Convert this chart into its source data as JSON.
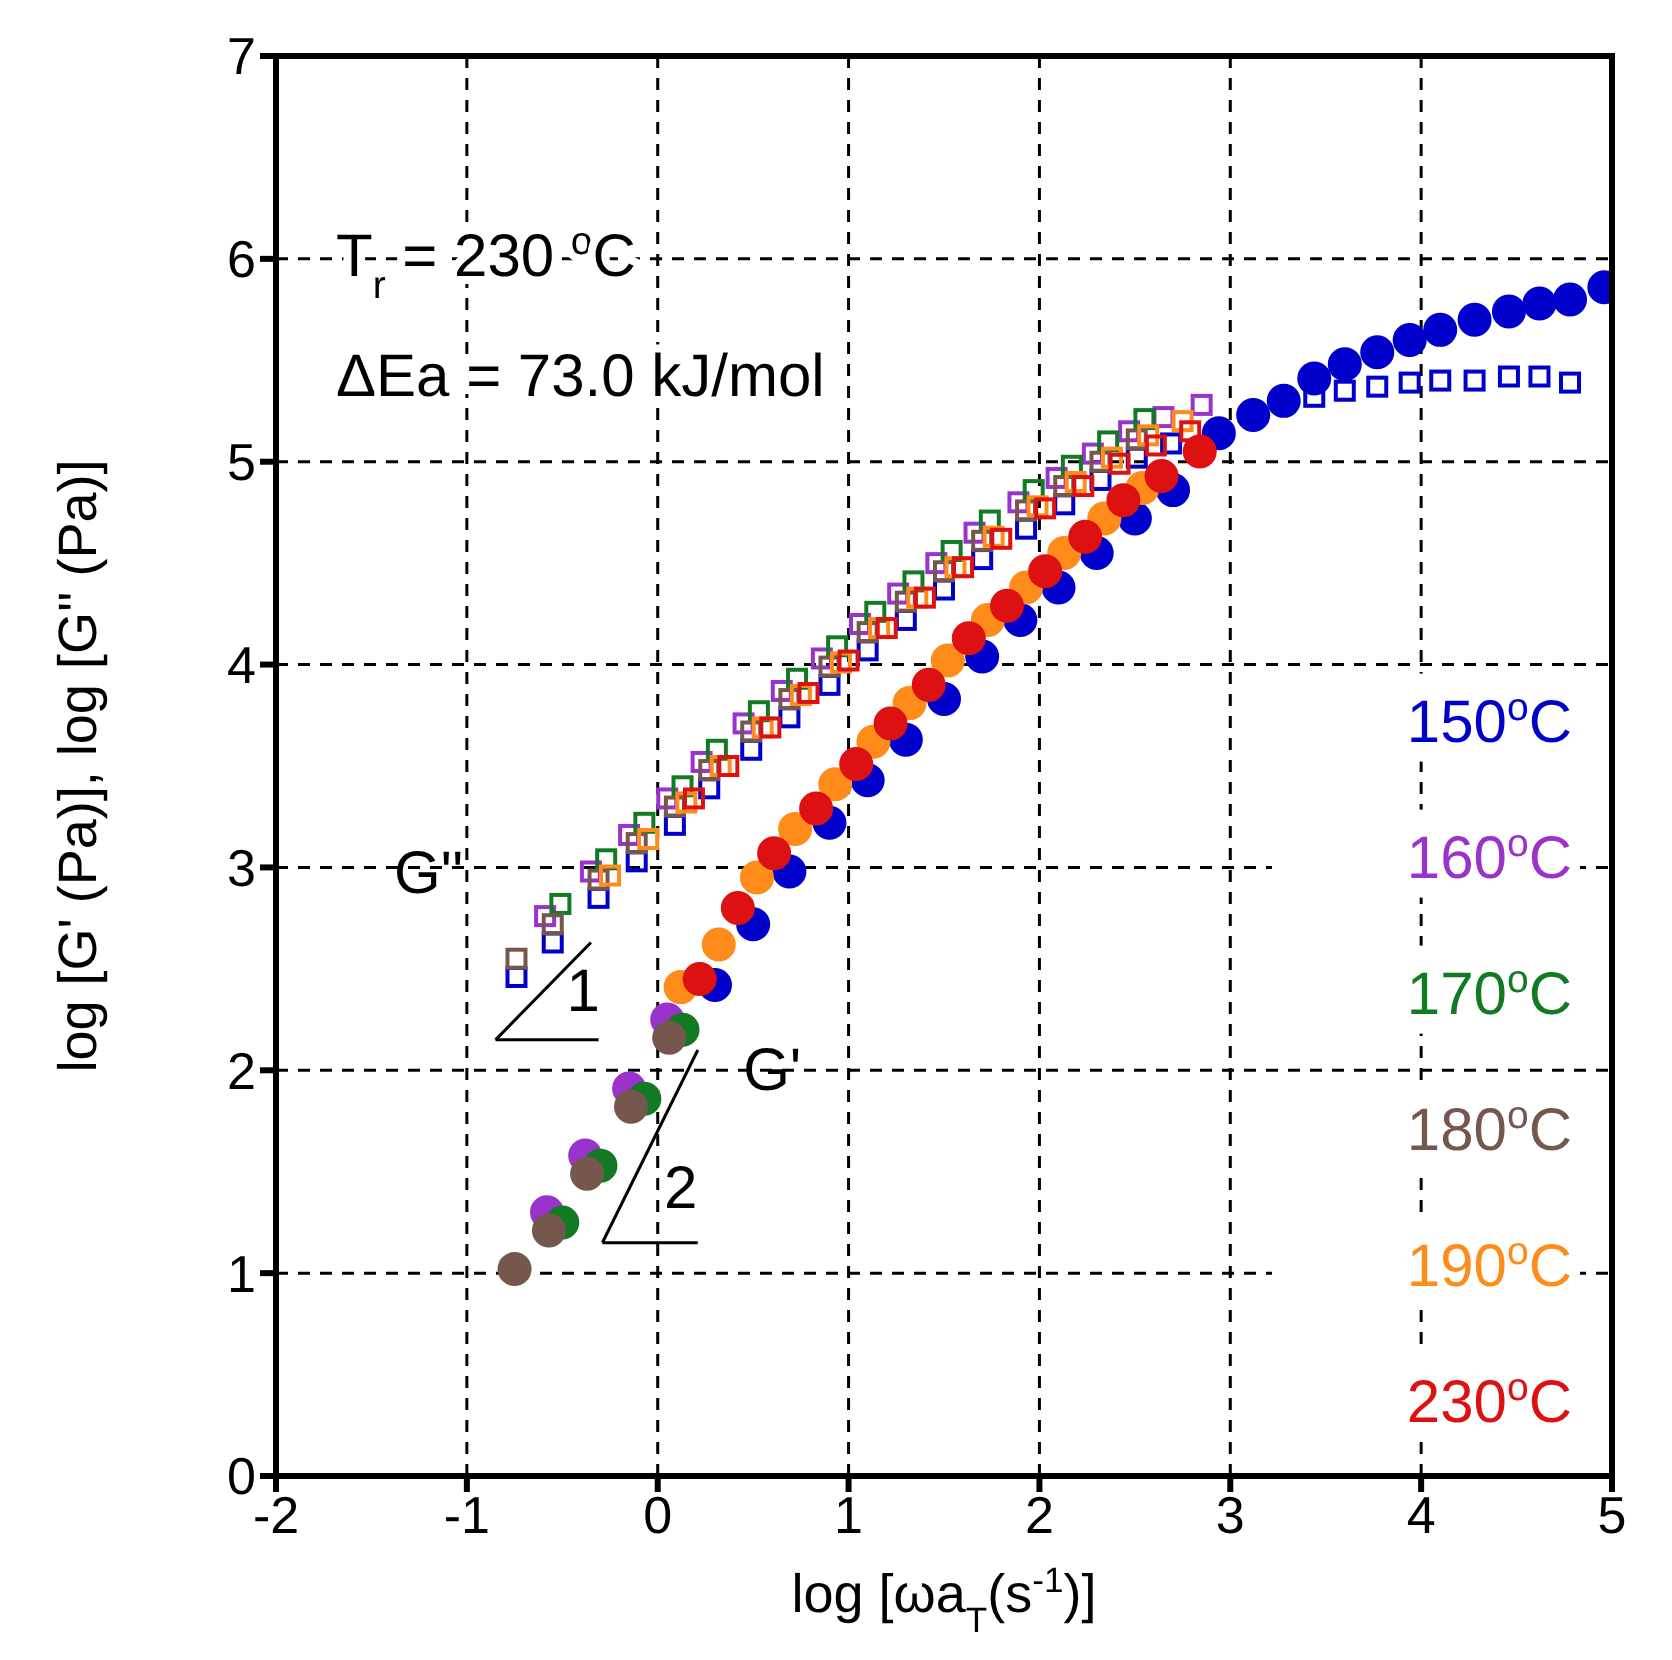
{
  "chart_data": {
    "type": "scatter",
    "xlabel": "log [ωa$_{T}$(s$^{-1}$)]",
    "ylabel": "log [G' (Pa)], log [G'' (Pa)]",
    "xlim": [
      -2,
      5
    ],
    "xticks": [
      -2,
      -1,
      0,
      1,
      2,
      3,
      4,
      5
    ],
    "ylim": [
      0,
      7
    ],
    "yticks": [
      0,
      1,
      2,
      3,
      4,
      5,
      6,
      7
    ],
    "grid": true,
    "legend": "right",
    "annotations": [
      "T$_{r}$ = 230 $^{o}$C",
      "ΔEa = 73.0 kJ/mol",
      "G''",
      "G'",
      "1",
      {
        "text": "2",
        "x": 0.06,
        "y": 2.16
      }
    ],
    "series": [
      {
        "color": "#0000cc",
        "marker": "square",
        "x": [
          -0.74,
          -0.55,
          -0.31,
          -0.11,
          0.09,
          0.27,
          0.49,
          0.69,
          0.9,
          1.1,
          1.3,
          1.5,
          1.7,
          1.93,
          2.13,
          2.32,
          2.51,
          2.69,
          3.44,
          3.6,
          3.77,
          3.94,
          4.1,
          4.28,
          4.46,
          4.62,
          4.78
        ],
        "values": [
          2.46,
          2.63,
          2.85,
          3.03,
          3.21,
          3.39,
          3.58,
          3.74,
          3.9,
          4.07,
          4.22,
          4.37,
          4.52,
          4.67,
          4.79,
          4.91,
          5.02,
          5.09,
          5.32,
          5.35,
          5.37,
          5.39,
          5.4,
          5.4,
          5.42,
          5.42,
          5.39
        ]
      },
      {
        "color": "#9933cc",
        "marker": "square",
        "x": [
          -0.59,
          -0.35,
          -0.15,
          0.05,
          0.23,
          0.45,
          0.65,
          0.86,
          1.06,
          1.26,
          1.46,
          1.66,
          1.89,
          2.09,
          2.28,
          2.47,
          2.65,
          2.85
        ],
        "values": [
          2.76,
          2.98,
          3.16,
          3.34,
          3.52,
          3.71,
          3.87,
          4.03,
          4.2,
          4.35,
          4.5,
          4.65,
          4.8,
          4.92,
          5.04,
          5.15,
          5.22,
          5.28
        ]
      },
      {
        "color": "#117a22",
        "marker": "square",
        "x": [
          -0.51,
          -0.27,
          -0.07,
          0.13,
          0.31,
          0.53,
          0.73,
          0.94,
          1.14,
          1.34,
          1.54,
          1.74,
          1.97,
          2.17,
          2.36,
          2.55
        ],
        "values": [
          2.82,
          3.04,
          3.22,
          3.4,
          3.58,
          3.77,
          3.93,
          4.09,
          4.26,
          4.41,
          4.56,
          4.71,
          4.86,
          4.98,
          5.1,
          5.21
        ]
      },
      {
        "color": "#76574e",
        "marker": "square",
        "x": [
          -0.74,
          -0.55,
          -0.31,
          -0.11,
          0.09,
          0.27,
          0.49,
          0.69,
          0.9,
          1.1,
          1.3,
          1.5,
          1.7,
          1.93,
          2.13,
          2.32,
          2.51
        ],
        "values": [
          2.55,
          2.72,
          2.94,
          3.12,
          3.3,
          3.48,
          3.67,
          3.83,
          3.99,
          4.16,
          4.31,
          4.46,
          4.61,
          4.76,
          4.88,
          5.0,
          5.11
        ]
      },
      {
        "color": "#ff8c1a",
        "marker": "square",
        "x": [
          -0.25,
          -0.05,
          0.15,
          0.33,
          0.55,
          0.75,
          0.96,
          1.16,
          1.36,
          1.56,
          1.76,
          1.99,
          2.19,
          2.38,
          2.57,
          2.75
        ],
        "values": [
          2.96,
          3.14,
          3.32,
          3.5,
          3.69,
          3.85,
          4.01,
          4.18,
          4.33,
          4.48,
          4.63,
          4.78,
          4.9,
          5.02,
          5.13,
          5.2
        ]
      },
      {
        "color": "#dd1111",
        "marker": "square",
        "x": [
          0.19,
          0.37,
          0.59,
          0.79,
          1.0,
          1.2,
          1.4,
          1.6,
          1.8,
          2.03,
          2.23,
          2.42,
          2.61,
          2.79
        ],
        "values": [
          3.34,
          3.5,
          3.69,
          3.86,
          4.02,
          4.18,
          4.33,
          4.48,
          4.62,
          4.77,
          4.88,
          4.99,
          5.08,
          5.15
        ]
      },
      {
        "name": "150$^{o}$C",
        "color": "#0000cc",
        "marker": "circle",
        "x": [
          0.3,
          0.5,
          0.69,
          0.9,
          1.1,
          1.3,
          1.5,
          1.7,
          1.9,
          2.1,
          2.3,
          2.5,
          2.7,
          2.94,
          3.12,
          3.28,
          3.44,
          3.6,
          3.77,
          3.94,
          4.1,
          4.28,
          4.46,
          4.62,
          4.78,
          4.96
        ],
        "values": [
          2.42,
          2.72,
          2.98,
          3.22,
          3.43,
          3.63,
          3.83,
          4.04,
          4.22,
          4.38,
          4.55,
          4.72,
          4.86,
          5.14,
          5.23,
          5.3,
          5.41,
          5.48,
          5.54,
          5.6,
          5.65,
          5.7,
          5.74,
          5.78,
          5.8,
          5.86
        ]
      },
      {
        "name": "160$^{o}$C",
        "color": "#9933cc",
        "marker": "circle",
        "x": [
          -0.58,
          -0.38,
          -0.15,
          0.05
        ],
        "values": [
          1.3,
          1.58,
          1.91,
          2.25
        ]
      },
      {
        "name": "170$^{o}$C",
        "color": "#117a22",
        "marker": "circle",
        "x": [
          -0.5,
          -0.3,
          -0.07,
          0.13
        ],
        "values": [
          1.25,
          1.53,
          1.86,
          2.2
        ]
      },
      {
        "name": "180$^{o}$C",
        "color": "#76574e",
        "marker": "circle",
        "x": [
          -0.75,
          -0.57,
          -0.37,
          -0.14,
          0.06
        ],
        "values": [
          1.02,
          1.21,
          1.49,
          1.82,
          2.16
        ]
      },
      {
        "name": "190$^{o}$C",
        "color": "#ff8c1a",
        "marker": "circle",
        "x": [
          0.12,
          0.32,
          0.52,
          0.72,
          0.93,
          1.13,
          1.32,
          1.52,
          1.73,
          1.93,
          2.13,
          2.34,
          2.54
        ],
        "values": [
          2.41,
          2.62,
          2.95,
          3.19,
          3.41,
          3.62,
          3.81,
          4.02,
          4.22,
          4.38,
          4.55,
          4.72,
          4.87
        ]
      },
      {
        "name": "230$^{o}$C",
        "color": "#dd1111",
        "marker": "circle",
        "x": [
          0.22,
          0.42,
          0.61,
          0.83,
          1.04,
          1.22,
          1.42,
          1.63,
          1.83,
          2.03,
          2.24,
          2.44,
          2.64,
          2.84
        ],
        "values": [
          2.45,
          2.8,
          3.07,
          3.29,
          3.51,
          3.71,
          3.9,
          4.13,
          4.29,
          4.46,
          4.63,
          4.81,
          4.93,
          5.05
        ]
      }
    ]
  }
}
